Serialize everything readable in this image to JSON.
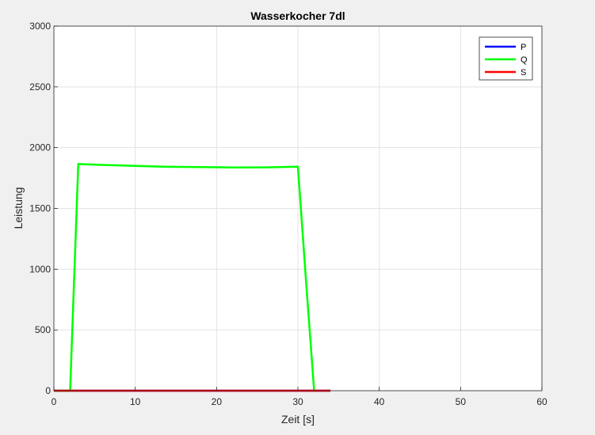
{
  "chart_data": {
    "type": "line",
    "title": "Wasserkocher 7dl",
    "xlabel": "Zeit [s]",
    "ylabel": "Leistung",
    "xlim": [
      0,
      60
    ],
    "ylim": [
      0,
      3000
    ],
    "xticks": [
      0,
      10,
      20,
      30,
      40,
      50,
      60
    ],
    "yticks": [
      0,
      500,
      1000,
      1500,
      2000,
      2500,
      3000
    ],
    "grid": true,
    "legend_position": "top-right",
    "series": [
      {
        "name": "P",
        "color": "#0000ff",
        "x": [
          0,
          2,
          3,
          5,
          10,
          14,
          20,
          24,
          28,
          30,
          32,
          34
        ],
        "y": [
          0,
          0,
          0,
          0,
          0,
          0,
          0,
          0,
          0,
          0,
          0,
          0
        ]
      },
      {
        "name": "Q",
        "color": "#00ff00",
        "x": [
          0,
          1,
          2,
          3,
          6,
          10,
          14,
          18,
          22,
          26,
          30,
          31,
          32
        ],
        "y": [
          0,
          0,
          0,
          1865,
          1858,
          1850,
          1842,
          1840,
          1837,
          1838,
          1843,
          900,
          0
        ]
      },
      {
        "name": "S",
        "color": "#ff0000",
        "x": [
          0,
          2,
          5,
          10,
          15,
          20,
          25,
          30,
          34
        ],
        "y": [
          0,
          0,
          0,
          0,
          0,
          0,
          0,
          0,
          0
        ]
      }
    ]
  }
}
